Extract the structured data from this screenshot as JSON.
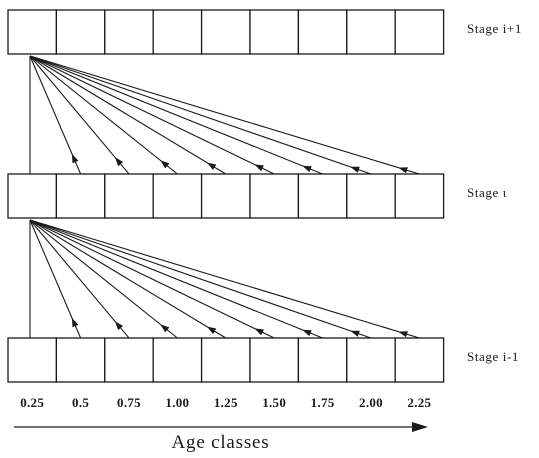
{
  "stages": [
    {
      "label": "Stage i+1"
    },
    {
      "label": "Stage ι"
    },
    {
      "label": "Stage i-1"
    }
  ],
  "age_classes": [
    "0.25",
    "0.5",
    "0.75",
    "1.00",
    "1.25",
    "1.50",
    "1.75",
    "2.00",
    "2.25"
  ],
  "axis": {
    "title": "Age classes"
  },
  "colors": {
    "stroke": "#1a1a1a",
    "box_fill": "#ffffff"
  }
}
